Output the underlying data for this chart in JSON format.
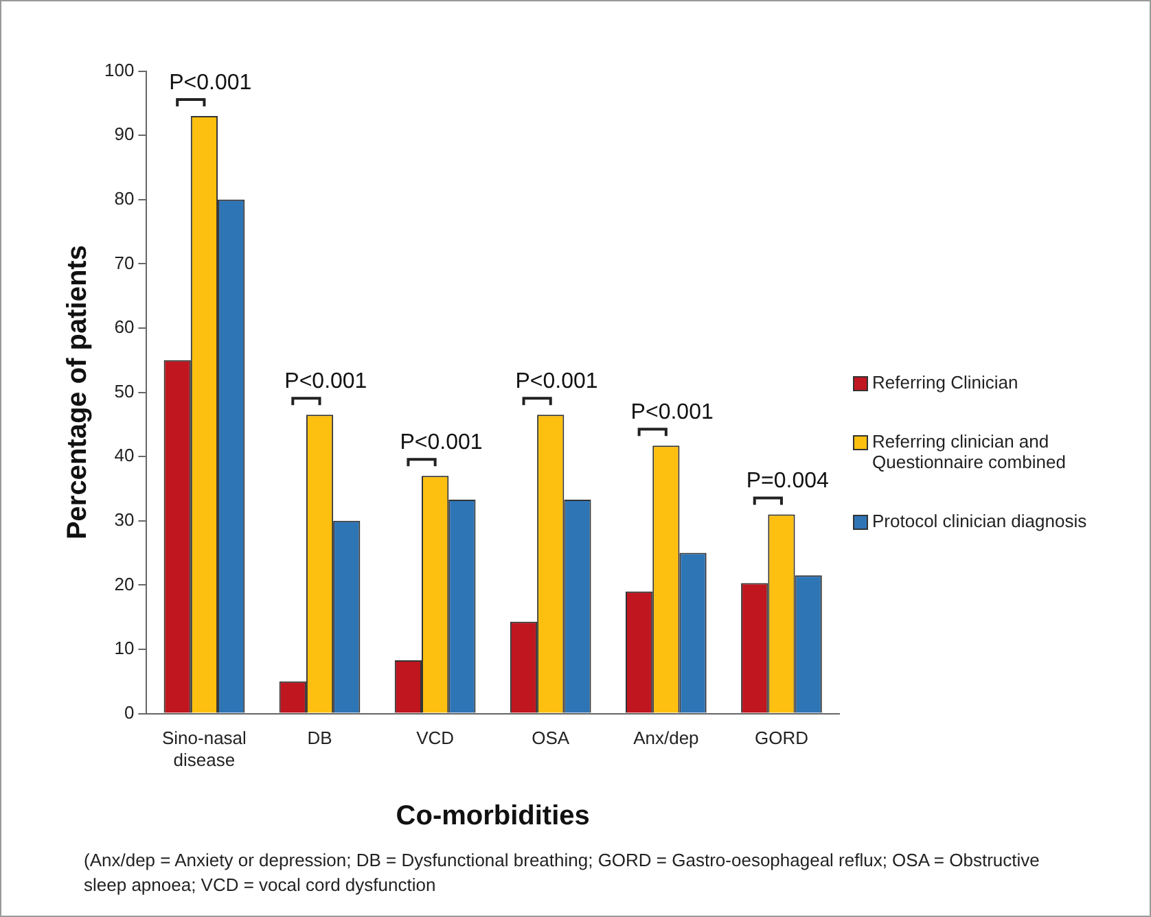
{
  "chart_data": {
    "type": "bar",
    "xlabel": "Co-morbidities",
    "ylabel": "Percentage of patients",
    "categories": [
      "Sino-nasal disease",
      "DB",
      "VCD",
      "OSA",
      "Anx/dep",
      "GORD"
    ],
    "series": [
      {
        "name": "Referring Clinician",
        "color": "#c0161f",
        "values": [
          55,
          5,
          8.3,
          14.3,
          19,
          20.3
        ]
      },
      {
        "name": "Referring clinician and Questionnaire combined",
        "color": "#fdc010",
        "values": [
          93,
          46.5,
          37,
          46.5,
          41.7,
          31
        ]
      },
      {
        "name": "Protocol clinician diagnosis",
        "color": "#2e75b6",
        "values": [
          80,
          30,
          33.3,
          33.3,
          25,
          21.5
        ]
      }
    ],
    "ylim": [
      0,
      100
    ],
    "yticks": [
      0,
      10,
      20,
      30,
      40,
      50,
      60,
      70,
      80,
      90,
      100
    ],
    "grid": false,
    "legend": "right",
    "annotations": [
      "P<0.001",
      "P<0.001",
      "P<0.001",
      "P<0.001",
      "P<0.001",
      "P=0.004",
      "(Anx/dep = Anxiety or depression; DB = Dysfunctional breathing; GORD = Gastro-oesophageal reflux; OSA = Obstructive sleep apnoea; VCD = vocal cord dysfunction"
    ]
  }
}
